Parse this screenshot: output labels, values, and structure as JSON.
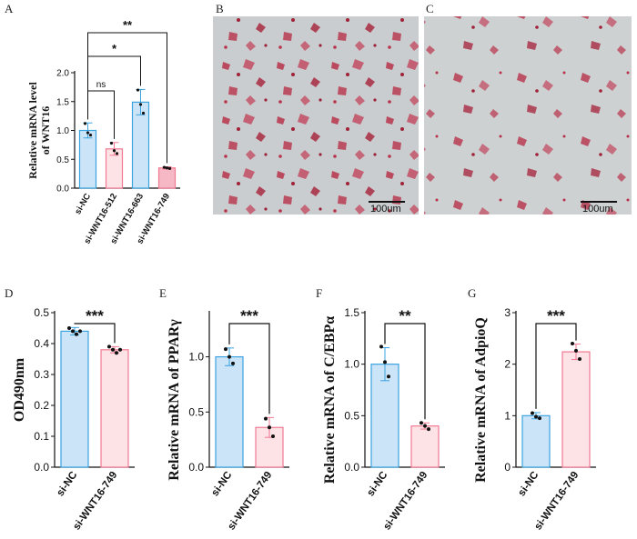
{
  "panel_labels": {
    "A": "A",
    "B": "B",
    "C": "C",
    "D": "D",
    "E": "E",
    "F": "F",
    "G": "G"
  },
  "colors": {
    "blue_fill": "#cce4f7",
    "blue_edge": "#3ba3e0",
    "pink_fill": "#fde2e6",
    "pink_edge": "#f07a92",
    "dark_pink_fill": "#f5b8c4",
    "stain": "#b8324a",
    "background_tissue": "#c9cdcf"
  },
  "micrographs": [
    {
      "panel": "B",
      "scale_bar": "100um",
      "icon": "oil-red-o-stained-cells-micrograph"
    },
    {
      "panel": "C",
      "scale_bar": "100um",
      "icon": "oil-red-o-stained-cells-micrograph"
    }
  ],
  "chart_data": [
    {
      "panel": "A",
      "type": "bar",
      "ylabel_line1": "Relative mRNA level",
      "ylabel_line2": "of WNT16",
      "categories": [
        "si-NC",
        "si-WNT16-512",
        "si-WNT16-663",
        "si-WNT16-749"
      ],
      "values": [
        1.0,
        0.68,
        1.49,
        0.35
      ],
      "errors": [
        0.13,
        0.11,
        0.22,
        0.02
      ],
      "points": [
        [
          1.12,
          0.96,
          0.92
        ],
        [
          0.78,
          0.65,
          0.6
        ],
        [
          1.7,
          1.45,
          1.3
        ],
        [
          0.36,
          0.35,
          0.34
        ]
      ],
      "fills": [
        "blue",
        "pink",
        "blue",
        "dark_pink"
      ],
      "ylim": [
        0,
        2.0
      ],
      "yticks": [
        "0.0",
        "0.5",
        "1.0",
        "1.5",
        "2.0"
      ],
      "significance": [
        {
          "from": 0,
          "to": 1,
          "label": "ns"
        },
        {
          "from": 0,
          "to": 2,
          "label": "*"
        },
        {
          "from": 0,
          "to": 3,
          "label": "**"
        }
      ]
    },
    {
      "panel": "D",
      "type": "bar",
      "ylabel": "OD490nm",
      "categories": [
        "si-NC",
        "si-WNT16-749"
      ],
      "values": [
        0.44,
        0.38
      ],
      "errors": [
        0.012,
        0.01
      ],
      "points": [
        [
          0.45,
          0.44,
          0.43,
          0.44
        ],
        [
          0.39,
          0.38,
          0.37,
          0.38
        ]
      ],
      "ylim": [
        0,
        0.5
      ],
      "yticks": [
        "0.0",
        "0.1",
        "0.2",
        "0.3",
        "0.4",
        "0.5"
      ],
      "significance": "***"
    },
    {
      "panel": "E",
      "type": "bar",
      "ylabel": "Relative mRNA of PPARγ",
      "categories": [
        "si-NC",
        "si-WNT16-749"
      ],
      "values": [
        1.0,
        0.36
      ],
      "errors": [
        0.08,
        0.09
      ],
      "points": [
        [
          1.07,
          1.0,
          0.94
        ],
        [
          0.44,
          0.36,
          0.28
        ]
      ],
      "ylim": [
        0,
        1.4
      ],
      "yticks": [
        "0.0",
        "0.5",
        "1.0"
      ],
      "significance": "***"
    },
    {
      "panel": "F",
      "type": "bar",
      "ylabel": "Relative mRNA of C/EBPα",
      "categories": [
        "si-NC",
        "si-WNT16-749"
      ],
      "values": [
        1.0,
        0.4
      ],
      "errors": [
        0.16,
        0.03
      ],
      "points": [
        [
          1.17,
          1.02,
          0.88
        ],
        [
          0.43,
          0.4,
          0.37
        ]
      ],
      "ylim": [
        0,
        1.5
      ],
      "yticks": [
        "0.0",
        "0.5",
        "1.0",
        "1.5"
      ],
      "significance": "**"
    },
    {
      "panel": "G",
      "type": "bar",
      "ylabel": "Relative mRNA of AdpioQ",
      "categories": [
        "si-NC",
        "si-WNT16-749"
      ],
      "values": [
        1.0,
        2.24
      ],
      "errors": [
        0.06,
        0.15
      ],
      "points": [
        [
          1.05,
          0.98,
          0.95
        ],
        [
          2.4,
          2.26,
          2.1
        ]
      ],
      "ylim": [
        0,
        3
      ],
      "yticks": [
        "0",
        "1",
        "2",
        "3"
      ],
      "significance": "***"
    }
  ]
}
